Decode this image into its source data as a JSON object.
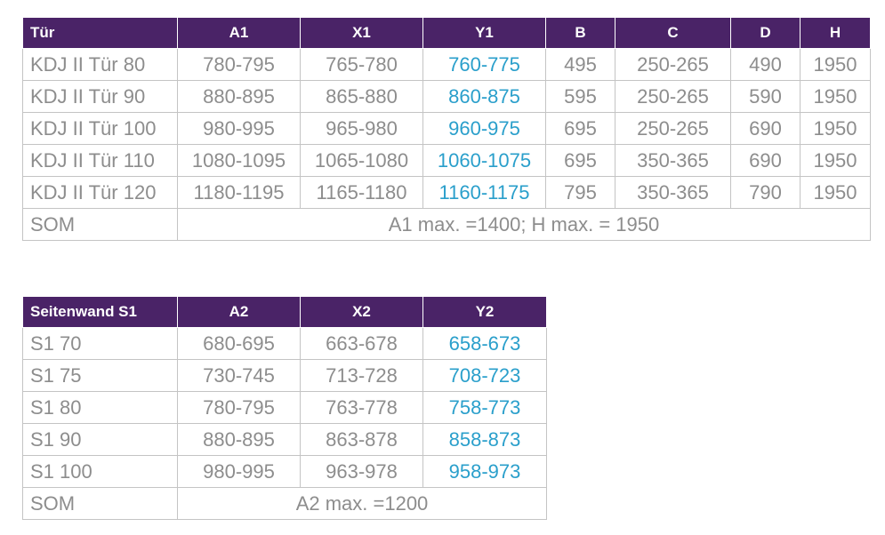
{
  "door_table": {
    "headers": [
      "Tür",
      "A1",
      "X1",
      "Y1",
      "B",
      "C",
      "D",
      "H"
    ],
    "rows": [
      [
        "KDJ II Tür 80",
        "780-795",
        "765-780",
        "760-775",
        "495",
        "250-265",
        "490",
        "1950"
      ],
      [
        "KDJ II Tür 90",
        "880-895",
        "865-880",
        "860-875",
        "595",
        "250-265",
        "590",
        "1950"
      ],
      [
        "KDJ II Tür 100",
        "980-995",
        "965-980",
        "960-975",
        "695",
        "250-265",
        "690",
        "1950"
      ],
      [
        "KDJ II Tür 110",
        "1080-1095",
        "1065-1080",
        "1060-1075",
        "695",
        "350-365",
        "690",
        "1950"
      ],
      [
        "KDJ II Tür 120",
        "1180-1195",
        "1165-1180",
        "1160-1175",
        "795",
        "350-365",
        "790",
        "1950"
      ]
    ],
    "som": {
      "label": "SOM",
      "text": "A1 max. =1400; H max. = 1950"
    }
  },
  "sidewall_table": {
    "headers": [
      "Seitenwand S1",
      "A2",
      "X2",
      "Y2"
    ],
    "rows": [
      [
        "S1 70",
        "680-695",
        "663-678",
        "658-673"
      ],
      [
        "S1 75",
        "730-745",
        "713-728",
        "708-723"
      ],
      [
        "S1 80",
        "780-795",
        "763-778",
        "758-773"
      ],
      [
        "S1 90",
        "880-895",
        "863-878",
        "858-873"
      ],
      [
        "S1 100",
        "980-995",
        "963-978",
        "958-973"
      ]
    ],
    "som": {
      "label": "SOM",
      "text": "A2 max. =1200"
    }
  },
  "colors": {
    "header_bg": "#4a2367",
    "header_text": "#ffffff",
    "cell_text": "#8d8d8d",
    "highlight_text": "#2a9fcb",
    "border": "#c4c4c4"
  }
}
